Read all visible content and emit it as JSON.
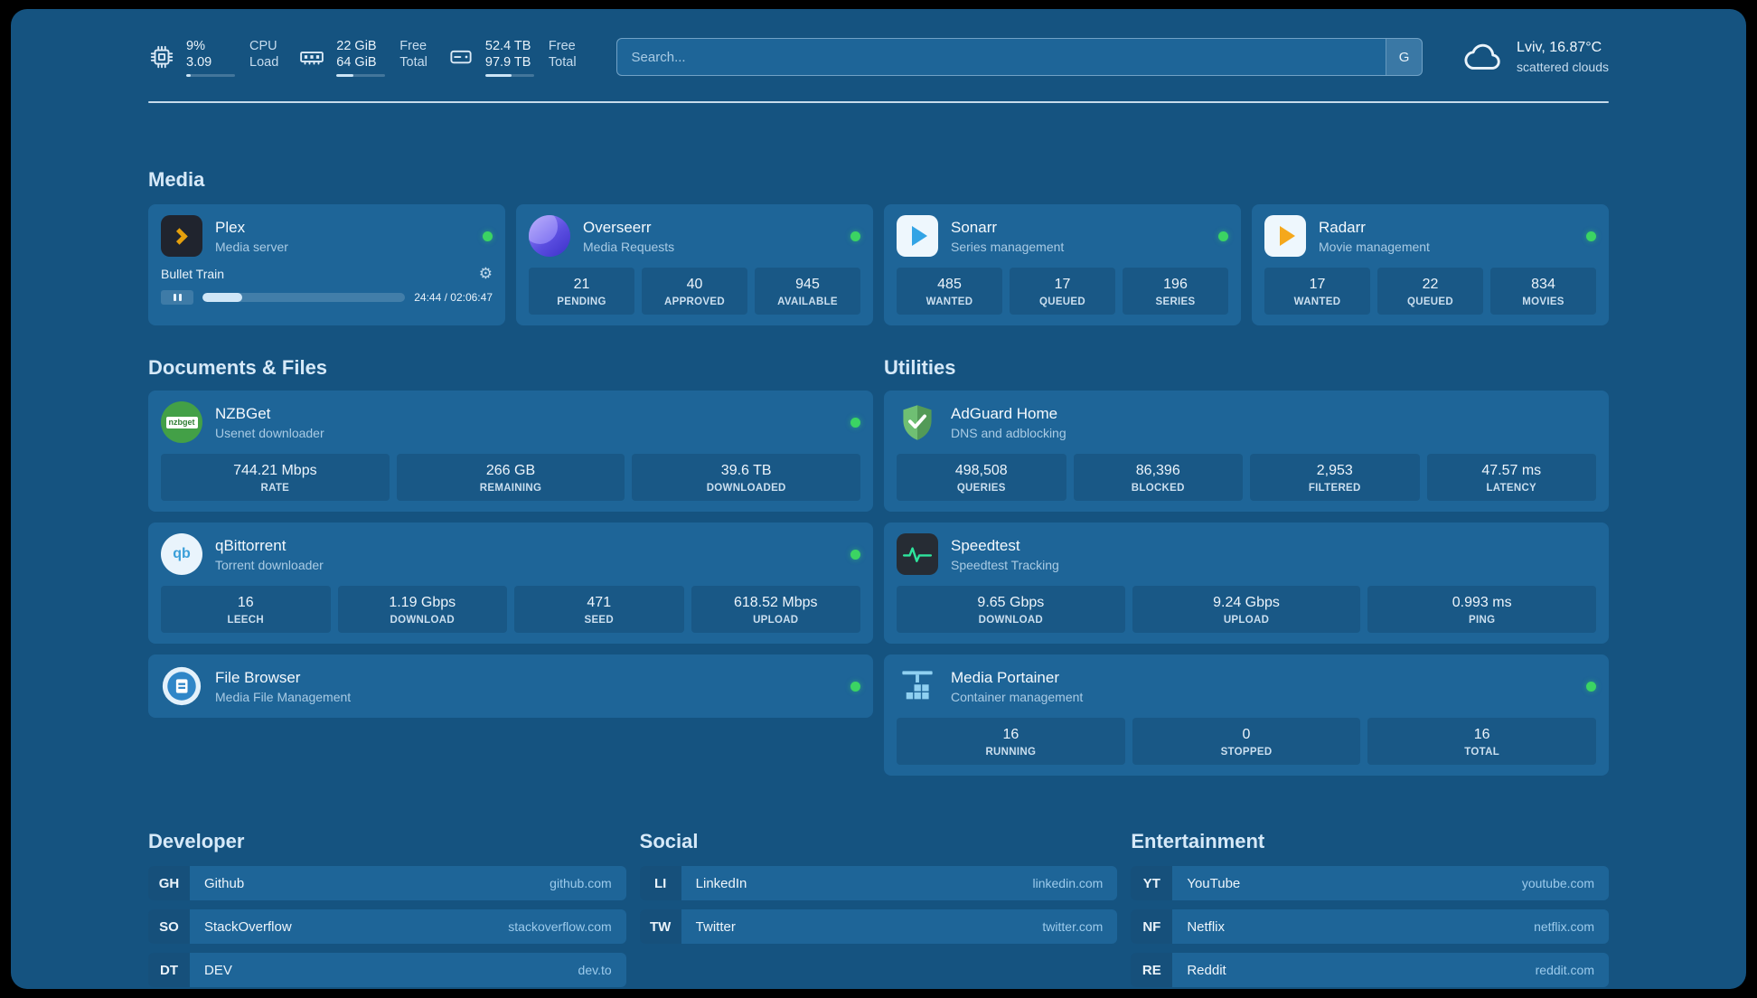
{
  "colors": {
    "background": "#155380",
    "card": "#1E6598",
    "status_online": "#3BD463",
    "link_url": "#9CCBEC",
    "plex_orange": "#E5A00D"
  },
  "glyphs": {
    "gear": "⚙"
  },
  "topbar": {
    "cpu": {
      "icon": "cpu-icon",
      "value_top": "9%",
      "value_bottom": "3.09",
      "label_top": "CPU",
      "label_bottom": "Load",
      "progress_pct": 9
    },
    "ram": {
      "icon": "ram-icon",
      "value_top": "22 GiB",
      "value_bottom": "64 GiB",
      "label_top": "Free",
      "label_bottom": "Total",
      "progress_pct": 34
    },
    "disk": {
      "icon": "disk-icon",
      "value_top": "52.4 TB",
      "value_bottom": "97.9 TB",
      "label_top": "Free",
      "label_bottom": "Total",
      "progress_pct": 54
    },
    "search": {
      "placeholder": "Search...",
      "engine_badge": "G"
    },
    "weather": {
      "icon": "cloud-icon",
      "location": "Lviv, 16.87°C",
      "condition": "scattered clouds"
    }
  },
  "sections": {
    "media": {
      "title": "Media",
      "cards": [
        {
          "icon": "plex-icon",
          "name": "Plex",
          "subtitle": "Media server",
          "status": "online",
          "now_playing": {
            "title": "Bullet Train",
            "time": "24:44 / 02:06:47",
            "progress_pct": 19.5
          }
        },
        {
          "icon": "overseerr-icon",
          "name": "Overseerr",
          "subtitle": "Media Requests",
          "status": "online",
          "stats": [
            {
              "value": "21",
              "label": "PENDING"
            },
            {
              "value": "40",
              "label": "APPROVED"
            },
            {
              "value": "945",
              "label": "AVAILABLE"
            }
          ]
        },
        {
          "icon": "sonarr-icon",
          "name": "Sonarr",
          "subtitle": "Series management",
          "status": "online",
          "stats": [
            {
              "value": "485",
              "label": "WANTED"
            },
            {
              "value": "17",
              "label": "QUEUED"
            },
            {
              "value": "196",
              "label": "SERIES"
            }
          ]
        },
        {
          "icon": "radarr-icon",
          "name": "Radarr",
          "subtitle": "Movie management",
          "status": "online",
          "stats": [
            {
              "value": "17",
              "label": "WANTED"
            },
            {
              "value": "22",
              "label": "QUEUED"
            },
            {
              "value": "834",
              "label": "MOVIES"
            }
          ]
        }
      ]
    },
    "documents": {
      "title": "Documents & Files",
      "cards": [
        {
          "icon": "nzbget-icon",
          "icon_text": "nzbget",
          "name": "NZBGet",
          "subtitle": "Usenet downloader",
          "status": "online",
          "stats": [
            {
              "value": "744.21 Mbps",
              "label": "RATE"
            },
            {
              "value": "266 GB",
              "label": "REMAINING"
            },
            {
              "value": "39.6 TB",
              "label": "DOWNLOADED"
            }
          ]
        },
        {
          "icon": "qbittorrent-icon",
          "icon_text": "qb",
          "name": "qBittorrent",
          "subtitle": "Torrent downloader",
          "status": "online",
          "stats": [
            {
              "value": "16",
              "label": "LEECH"
            },
            {
              "value": "1.19 Gbps",
              "label": "DOWNLOAD"
            },
            {
              "value": "471",
              "label": "SEED"
            },
            {
              "value": "618.52 Mbps",
              "label": "UPLOAD"
            }
          ]
        },
        {
          "icon": "filebrowser-icon",
          "name": "File Browser",
          "subtitle": "Media File Management",
          "status": "online"
        }
      ]
    },
    "utilities": {
      "title": "Utilities",
      "cards": [
        {
          "icon": "adguard-icon",
          "name": "AdGuard Home",
          "subtitle": "DNS and adblocking",
          "stats": [
            {
              "value": "498,508",
              "label": "QUERIES"
            },
            {
              "value": "86,396",
              "label": "BLOCKED"
            },
            {
              "value": "2,953",
              "label": "FILTERED"
            },
            {
              "value": "47.57 ms",
              "label": "LATENCY"
            }
          ]
        },
        {
          "icon": "speedtest-icon",
          "name": "Speedtest",
          "subtitle": "Speedtest Tracking",
          "stats": [
            {
              "value": "9.65 Gbps",
              "label": "DOWNLOAD"
            },
            {
              "value": "9.24 Gbps",
              "label": "UPLOAD"
            },
            {
              "value": "0.993 ms",
              "label": "PING"
            }
          ]
        },
        {
          "icon": "portainer-icon",
          "name": "Media Portainer",
          "subtitle": "Container management",
          "status": "online",
          "stats": [
            {
              "value": "16",
              "label": "RUNNING"
            },
            {
              "value": "0",
              "label": "STOPPED"
            },
            {
              "value": "16",
              "label": "TOTAL"
            }
          ]
        }
      ]
    },
    "bookmarks": [
      {
        "title": "Developer",
        "links": [
          {
            "abbr": "GH",
            "name": "Github",
            "url": "github.com"
          },
          {
            "abbr": "SO",
            "name": "StackOverflow",
            "url": "stackoverflow.com"
          },
          {
            "abbr": "DT",
            "name": "DEV",
            "url": "dev.to"
          }
        ]
      },
      {
        "title": "Social",
        "links": [
          {
            "abbr": "LI",
            "name": "LinkedIn",
            "url": "linkedin.com"
          },
          {
            "abbr": "TW",
            "name": "Twitter",
            "url": "twitter.com"
          }
        ]
      },
      {
        "title": "Entertainment",
        "links": [
          {
            "abbr": "YT",
            "name": "YouTube",
            "url": "youtube.com"
          },
          {
            "abbr": "NF",
            "name": "Netflix",
            "url": "netflix.com"
          },
          {
            "abbr": "RE",
            "name": "Reddit",
            "url": "reddit.com"
          }
        ]
      }
    ]
  }
}
